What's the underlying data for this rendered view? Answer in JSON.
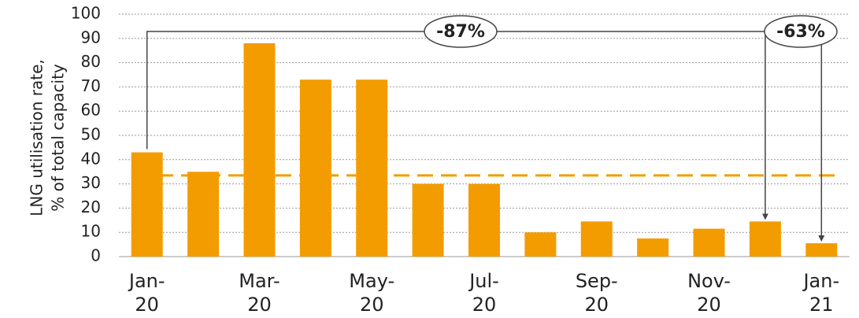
{
  "chart_data": {
    "type": "bar",
    "y_label": [
      "LNG utilisation rate,",
      "% of total capacity"
    ],
    "categories": [
      "Jan-20",
      null,
      "Mar-20",
      null,
      "May-20",
      null,
      "Jul-20",
      null,
      "Sep-20",
      null,
      "Nov-20",
      null,
      "Jan-21"
    ],
    "values": [
      43,
      35,
      88,
      73,
      73,
      30,
      30,
      10,
      14.5,
      7.5,
      11.5,
      14.5,
      5.5
    ],
    "color": "#f39c00",
    "reference_line": {
      "value": 33.5,
      "color": "#f39c00"
    },
    "ylim": [
      0,
      100
    ],
    "yticks": [
      0,
      10,
      20,
      30,
      40,
      50,
      60,
      70,
      80,
      90,
      100
    ],
    "grid": true,
    "annotations": [
      "-87%",
      "-63%"
    ]
  }
}
